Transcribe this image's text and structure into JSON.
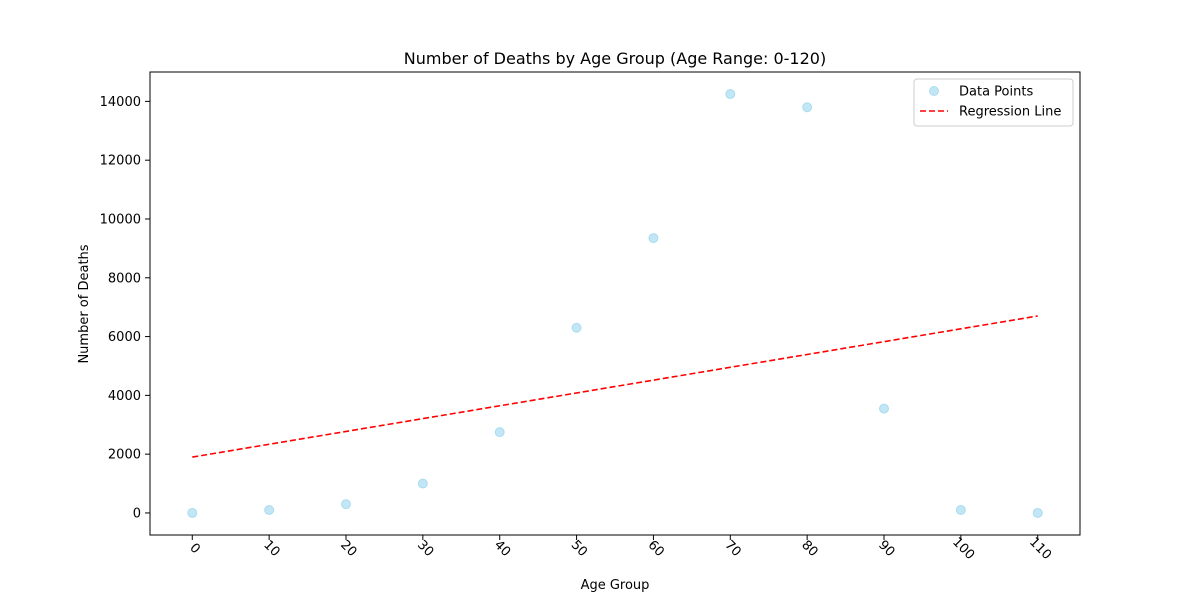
{
  "chart_data": {
    "type": "scatter",
    "title": "Number of Deaths by Age Group (Age Range: 0-120)",
    "xlabel": "Age Group",
    "ylabel": "Number of Deaths",
    "xlim": [
      -5.5,
      115.5
    ],
    "ylim": [
      -750,
      15000
    ],
    "xticks": [
      0,
      10,
      20,
      30,
      40,
      50,
      60,
      70,
      80,
      90,
      100,
      110
    ],
    "yticks": [
      0,
      2000,
      4000,
      6000,
      8000,
      10000,
      12000,
      14000
    ],
    "grid": false,
    "legend_position": "top-right",
    "series": [
      {
        "name": "Data Points",
        "kind": "scatter",
        "color": "#87ceeb",
        "x": [
          0,
          10,
          20,
          30,
          40,
          50,
          60,
          70,
          80,
          90,
          100,
          110
        ],
        "y": [
          0,
          100,
          300,
          1000,
          2750,
          6300,
          9350,
          14250,
          13800,
          3550,
          100,
          0
        ]
      },
      {
        "name": "Regression Line",
        "kind": "line",
        "style": "dashed",
        "color": "#ff0000",
        "x": [
          0,
          110
        ],
        "y": [
          1900,
          6700
        ]
      }
    ]
  }
}
